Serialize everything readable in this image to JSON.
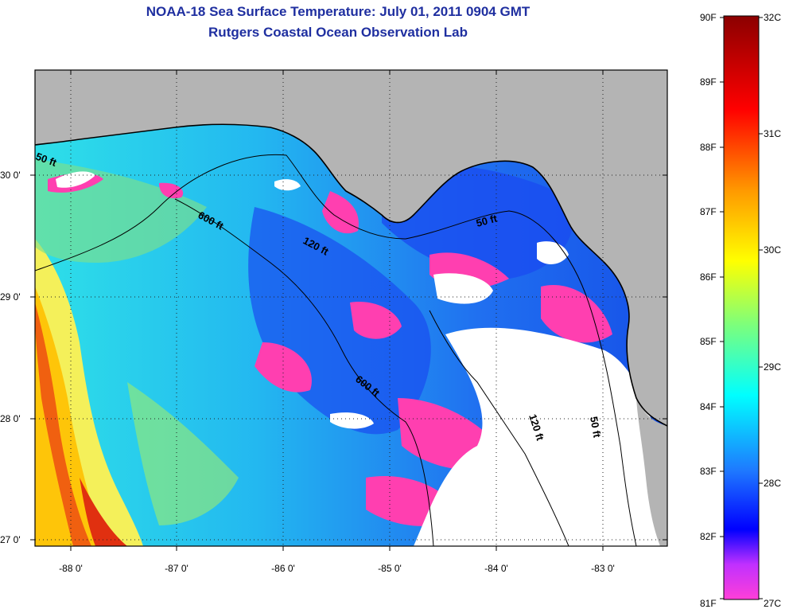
{
  "header": {
    "title_line1": "NOAA-18 Sea Surface Temperature:  July 01, 2011 0904 GMT",
    "title_line2": "Rutgers Coastal Ocean Observation Lab"
  },
  "map": {
    "lon_ticks": [
      "-88 0'",
      "-87 0'",
      "-86 0'",
      "-85 0'",
      "-84 0'",
      "-83 0'"
    ],
    "lat_ticks": [
      "30 0'",
      "29 0'",
      "28 0'",
      "27 0'"
    ],
    "contour_labels": [
      "50 ft",
      "600 ft",
      "120 ft",
      "50 ft",
      "600 ft",
      "120 ft",
      "50 ft"
    ],
    "colors": {
      "land": "#b4b4b4",
      "cloud": "#ffffff",
      "contour": "#000000"
    }
  },
  "colorbar": {
    "fahrenheit": [
      "90F",
      "89F",
      "88F",
      "87F",
      "86F",
      "85F",
      "84F",
      "83F",
      "82F",
      "81F"
    ],
    "celsius": [
      "32C",
      "31C",
      "30C",
      "29C",
      "28C",
      "27C"
    ],
    "stops": [
      "#ff3fd8",
      "#c030ff",
      "#0000ff",
      "#1e78ff",
      "#00ffff",
      "#7cff7c",
      "#ffff00",
      "#ff9a00",
      "#ff0000",
      "#8b0000"
    ]
  }
}
